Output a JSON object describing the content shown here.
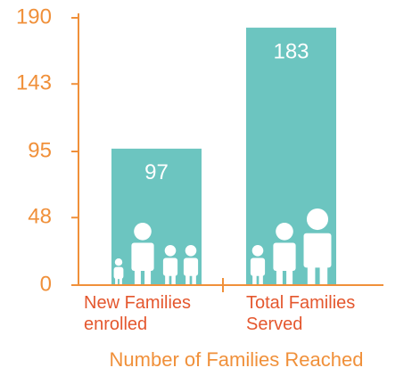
{
  "chart_data": {
    "type": "bar",
    "x_label": "Number of Families Reached",
    "categories": [
      "New Families enrolled",
      "Total Families Served"
    ],
    "values": [
      97,
      183
    ],
    "color": "#6cc5c0",
    "ylim": [
      0,
      190
    ],
    "yticks": [
      0,
      48,
      95,
      143,
      190
    ]
  }
}
